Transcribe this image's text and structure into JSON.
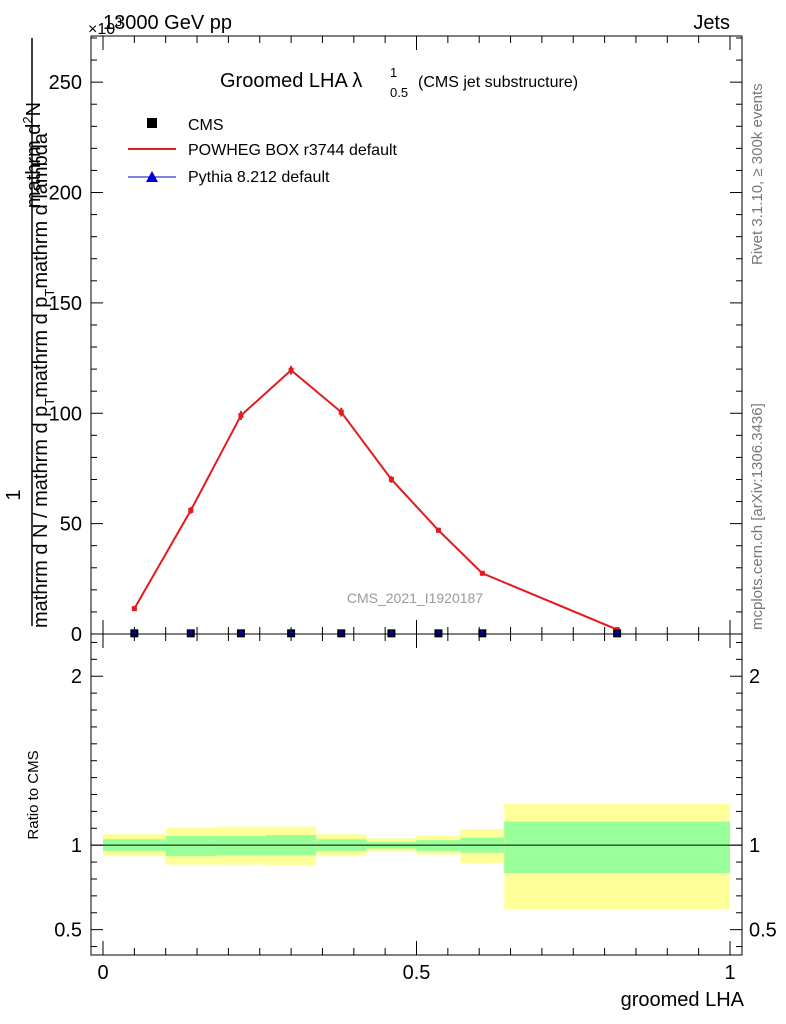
{
  "header": {
    "energy_label": "13000 GeV pp",
    "process_label": "Jets",
    "exponent_label": "×10",
    "exponent_power": "3"
  },
  "side": {
    "rivet_label": "Rivet 3.1.10, ≥ 300k events",
    "source_label": "mcplots.cern.ch [arXiv:1306.3436]"
  },
  "chart_data": [
    {
      "type": "line",
      "title_main": "Groomed LHA",
      "title_lambda": "λ",
      "title_sup": "1",
      "title_sub": "0.5",
      "title_suffix": "(CMS jet substructure)",
      "watermark": "CMS_2021_I1920187",
      "ylabel_numerator": "mathrm d²N",
      "ylabel_numerator_main": "mathrm d",
      "ylabel_numerator_sup": "2",
      "ylabel_numerator_end": "N",
      "ylabel_denominator_a": "mathrm d N / mathrm d p",
      "ylabel_denominator_sub_a": "T",
      "ylabel_denominator_b": "mathrm d p",
      "ylabel_denominator_sub_b": "T",
      "ylabel_denominator_c": "mathrm d lambda",
      "ylabel_one": "1",
      "xlim": [
        0,
        1
      ],
      "ylim": [
        0,
        270
      ],
      "yticks": [
        0,
        50,
        100,
        150,
        200,
        250
      ],
      "ytick_labels": [
        "0",
        "50",
        "100",
        "150",
        "200",
        "250"
      ],
      "bins": [
        [
          0.0,
          0.1
        ],
        [
          0.1,
          0.18
        ],
        [
          0.18,
          0.26
        ],
        [
          0.26,
          0.34
        ],
        [
          0.34,
          0.42
        ],
        [
          0.42,
          0.5
        ],
        [
          0.5,
          0.57
        ],
        [
          0.57,
          0.64
        ],
        [
          0.64,
          1.0
        ]
      ],
      "x": [
        0.05,
        0.14,
        0.22,
        0.3,
        0.38,
        0.46,
        0.535,
        0.605,
        0.82
      ],
      "legend": [
        {
          "label": "CMS",
          "marker": "square",
          "color": "#000000"
        },
        {
          "label": "POWHEG BOX r3744 default",
          "marker": "line",
          "color": "#e41a1c"
        },
        {
          "label": "Pythia 8.212 default",
          "marker": "triangle",
          "color": "#0000cc"
        }
      ],
      "series": [
        {
          "name": "CMS",
          "values": [
            0.3,
            0.3,
            0.3,
            0.3,
            0.3,
            0.3,
            0.3,
            0.3,
            0.3
          ]
        },
        {
          "name": "POWHEG BOX r3744 default",
          "values": [
            11.5,
            56,
            99,
            119.5,
            100.5,
            70,
            47,
            27.5,
            2
          ],
          "err": [
            1,
            1.5,
            2,
            2,
            2,
            1.5,
            1.2,
            0.8,
            0.4
          ]
        },
        {
          "name": "Pythia 8.212 default",
          "values": [
            0.3,
            0.3,
            0.3,
            0.3,
            0.3,
            0.3,
            0.3,
            0.3,
            0.3
          ]
        }
      ]
    },
    {
      "type": "area",
      "ylabel": "Ratio to CMS",
      "xlabel": "groomed LHA",
      "xlim": [
        0,
        1
      ],
      "ylim": [
        0.35,
        2.25
      ],
      "xticks": [
        0,
        0.5,
        1
      ],
      "xtick_labels": [
        "0",
        "0.5",
        "1"
      ],
      "yticks": [
        0.5,
        1,
        2
      ],
      "ytick_labels": [
        "0.5",
        "1",
        "2"
      ],
      "band_total_color": "#ffff99",
      "band_stat_color": "#99ff99",
      "ref_line": 1,
      "yellow_low": [
        0.935,
        0.885,
        0.885,
        0.88,
        0.935,
        0.96,
        0.945,
        0.895,
        0.62
      ],
      "yellow_high": [
        1.065,
        1.105,
        1.11,
        1.11,
        1.065,
        1.04,
        1.055,
        1.095,
        1.245
      ],
      "green_low": [
        0.965,
        0.935,
        0.94,
        0.94,
        0.965,
        0.98,
        0.965,
        0.955,
        0.835
      ],
      "green_high": [
        1.035,
        1.055,
        1.055,
        1.06,
        1.035,
        1.02,
        1.03,
        1.045,
        1.14
      ]
    }
  ]
}
